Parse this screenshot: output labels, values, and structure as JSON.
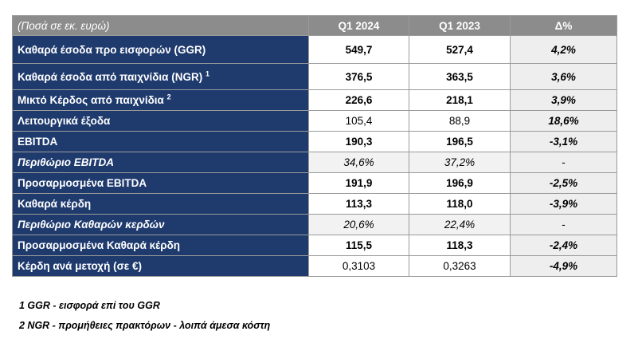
{
  "header": {
    "label": "(Ποσά σε εκ. ευρώ)",
    "col1": "Q1 2024",
    "col2": "Q1 2023",
    "col3": "Δ%"
  },
  "rows": [
    {
      "label": "Καθαρά έσοδα προ εισφορών (GGR)",
      "sup": "",
      "v1": "549,7",
      "v2": "527,4",
      "d": "4,2%"
    },
    {
      "label": "Καθαρά έσοδα από παιχνίδια (NGR)",
      "sup": "1",
      "v1": "376,5",
      "v2": "363,5",
      "d": "3,6%"
    },
    {
      "label": "Μικτό Κέρδος από παιχνίδια",
      "sup": "2",
      "v1": "226,6",
      "v2": "218,1",
      "d": "3,9%"
    },
    {
      "label": "Λειτουργικά έξοδα",
      "sup": "",
      "v1": "105,4",
      "v2": "88,9",
      "d": "18,6%"
    },
    {
      "label": "EBITDA",
      "sup": "",
      "v1": "190,3",
      "v2": "196,5",
      "d": "-3,1%"
    },
    {
      "label": "Περιθώριο EBITDA",
      "sup": "",
      "v1": "34,6%",
      "v2": "37,2%",
      "d": "-"
    },
    {
      "label": "Προσαρμοσμένα EBITDA",
      "sup": "",
      "v1": "191,9",
      "v2": "196,9",
      "d": "-2,5%"
    },
    {
      "label": "Καθαρά κέρδη",
      "sup": "",
      "v1": "113,3",
      "v2": "118,0",
      "d": "-3,9%"
    },
    {
      "label": "Περιθώριο Καθαρών κερδών",
      "sup": "",
      "v1": "20,6%",
      "v2": "22,4%",
      "d": "-"
    },
    {
      "label": "Προσαρμοσμένα Καθαρά κέρδη",
      "sup": "",
      "v1": "115,5",
      "v2": "118,3",
      "d": "-2,4%"
    },
    {
      "label": "Κέρδη ανά μετοχή (σε €)",
      "sup": "",
      "v1": "0,3103",
      "v2": "0,3263",
      "d": "-4,9%"
    }
  ],
  "notes": {
    "n1": "1 GGR - εισφορά επί του GGR",
    "n2": "2 NGR - προμήθειες πρακτόρων - λοιπά άμεσα κόστη"
  }
}
